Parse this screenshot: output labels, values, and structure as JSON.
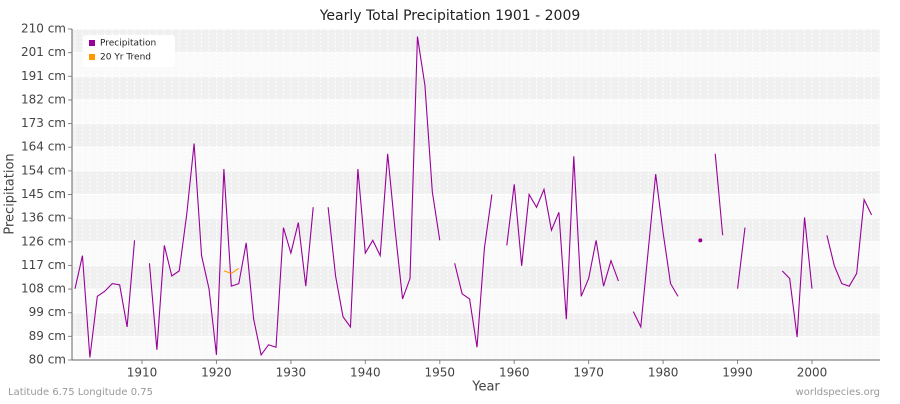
{
  "chart_data": {
    "type": "line",
    "title": "Yearly Total Precipitation 1901 - 2009",
    "x_label": "Year",
    "y_label": "Precipitation",
    "footer_left": "Latitude 6.75 Longitude 0.75",
    "footer_right": "worldspecies.org",
    "legend": "top-left",
    "grid": true,
    "xlim": [
      1901,
      2009
    ],
    "xticks": [
      1910,
      1920,
      1930,
      1940,
      1950,
      1960,
      1970,
      1980,
      1990,
      2000
    ],
    "ylim": [
      80,
      210
    ],
    "yticks": [
      {
        "value": 80,
        "label": "80 cm"
      },
      {
        "value": 89.29,
        "label": "89 cm"
      },
      {
        "value": 98.57,
        "label": "99 cm"
      },
      {
        "value": 107.86,
        "label": "108 cm"
      },
      {
        "value": 117.14,
        "label": "117 cm"
      },
      {
        "value": 126.43,
        "label": "126 cm"
      },
      {
        "value": 135.71,
        "label": "136 cm"
      },
      {
        "value": 145,
        "label": "145 cm"
      },
      {
        "value": 154.29,
        "label": "154 cm"
      },
      {
        "value": 163.57,
        "label": "164 cm"
      },
      {
        "value": 172.86,
        "label": "173 cm"
      },
      {
        "value": 182.14,
        "label": "182 cm"
      },
      {
        "value": 191.43,
        "label": "191 cm"
      },
      {
        "value": 200.71,
        "label": "201 cm"
      },
      {
        "value": 210,
        "label": "210 cm"
      }
    ],
    "x": [
      1901,
      1902,
      1903,
      1904,
      1905,
      1906,
      1907,
      1908,
      1909,
      1910,
      1911,
      1912,
      1913,
      1914,
      1915,
      1916,
      1917,
      1918,
      1919,
      1920,
      1921,
      1922,
      1923,
      1924,
      1925,
      1926,
      1927,
      1928,
      1929,
      1930,
      1931,
      1932,
      1933,
      1934,
      1935,
      1936,
      1937,
      1938,
      1939,
      1940,
      1941,
      1942,
      1943,
      1944,
      1945,
      1946,
      1947,
      1948,
      1949,
      1950,
      1951,
      1952,
      1953,
      1954,
      1955,
      1956,
      1957,
      1958,
      1959,
      1960,
      1961,
      1962,
      1963,
      1964,
      1965,
      1966,
      1967,
      1968,
      1969,
      1970,
      1971,
      1972,
      1973,
      1974,
      1975,
      1976,
      1977,
      1978,
      1979,
      1980,
      1981,
      1982,
      1983,
      1984,
      1985,
      1986,
      1987,
      1988,
      1989,
      1990,
      1991,
      1992,
      1993,
      1994,
      1995,
      1996,
      1997,
      1998,
      1999,
      2000,
      2001,
      2002,
      2003,
      2004,
      2005,
      2006,
      2007,
      2008,
      2009
    ],
    "series": [
      {
        "name": "Precipitation",
        "color": "#990099",
        "values": [
          108,
          121,
          81,
          105,
          107,
          110,
          109.5,
          93,
          127,
          null,
          118,
          84,
          125,
          113,
          115,
          137,
          165,
          121,
          108,
          82,
          155,
          109,
          110,
          126,
          96,
          82,
          86,
          85,
          132,
          122,
          134,
          109,
          140,
          null,
          140,
          113,
          97,
          93,
          155,
          122,
          127,
          121,
          161,
          131,
          104,
          112,
          207,
          188,
          146,
          127,
          null,
          118,
          106,
          104,
          85,
          124,
          145,
          null,
          125,
          149,
          117,
          145,
          140,
          147,
          131,
          138,
          96,
          160,
          105,
          112,
          127,
          109,
          119,
          111,
          null,
          99,
          93,
          123,
          153,
          130,
          110,
          105,
          null,
          null,
          127,
          null,
          161,
          129,
          null,
          108,
          132,
          null,
          null,
          null,
          null,
          115,
          112,
          89,
          136,
          108,
          null,
          129,
          117,
          110,
          109,
          114,
          143,
          137,
          null
        ]
      },
      {
        "name": "20 Yr Trend",
        "color": "#ff9900",
        "x": [
          1921,
          1922,
          1923
        ],
        "values": [
          115,
          114,
          116
        ]
      }
    ]
  }
}
